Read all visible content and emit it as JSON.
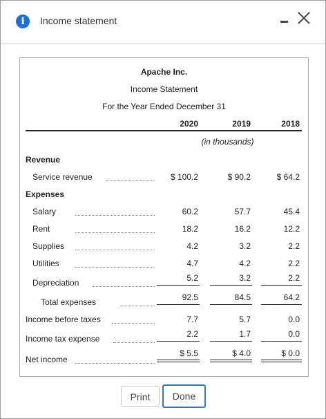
{
  "dialog": {
    "title": "Income statement",
    "info_icon": "i",
    "buttons": {
      "print": "Print",
      "done": "Done"
    }
  },
  "statement": {
    "company": "Apache Inc.",
    "name": "Income Statement",
    "period": "For the Year Ended December 31",
    "years": [
      "2020",
      "2019",
      "2018"
    ],
    "unit_note": "(in thousands)",
    "revenue_heading": "Revenue",
    "expenses_heading": "Expenses",
    "rows": {
      "service_revenue": {
        "label": "Service revenue",
        "values": [
          "$ 100.2",
          "$ 90.2",
          "$ 64.2"
        ]
      },
      "salary": {
        "label": "Salary",
        "values": [
          "60.2",
          "57.7",
          "45.4"
        ]
      },
      "rent": {
        "label": "Rent",
        "values": [
          "18.2",
          "16.2",
          "12.2"
        ]
      },
      "supplies": {
        "label": "Supplies",
        "values": [
          "4.2",
          "3.2",
          "2.2"
        ]
      },
      "utilities": {
        "label": "Utilities",
        "values": [
          "4.7",
          "4.2",
          "2.2"
        ]
      },
      "depreciation": {
        "label": "Depreciation",
        "values": [
          "5.2",
          "3.2",
          "2.2"
        ]
      },
      "total_expenses": {
        "label": "Total expenses",
        "values": [
          "92.5",
          "84.5",
          "64.2"
        ]
      },
      "income_before_taxes": {
        "label": "Income before taxes",
        "values": [
          "7.7",
          "5.7",
          "0.0"
        ]
      },
      "income_tax_expense": {
        "label": "Income tax expense",
        "values": [
          "2.2",
          "1.7",
          "0.0"
        ]
      },
      "net_income": {
        "label": "Net income",
        "values": [
          "$ 5.5",
          "$ 4.0",
          "$ 0.0"
        ]
      }
    }
  },
  "colors": {
    "accent": "#1e6fd9",
    "done_border": "#2f75c4"
  }
}
